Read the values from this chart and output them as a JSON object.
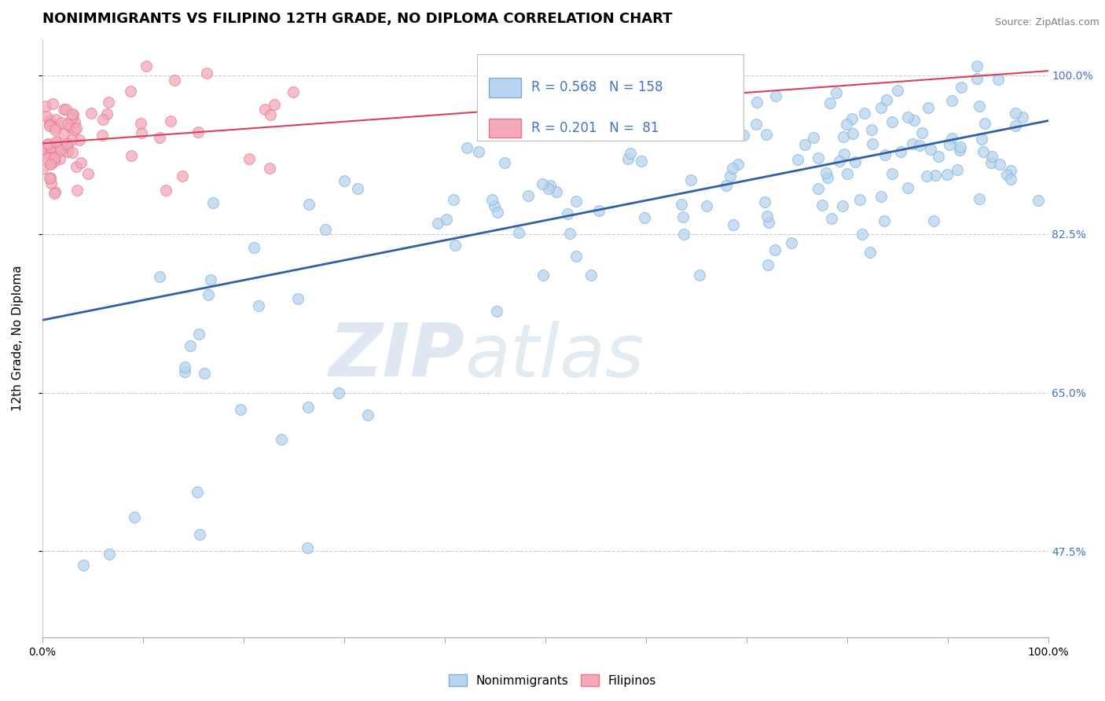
{
  "title": "NONIMMIGRANTS VS FILIPINO 12TH GRADE, NO DIPLOMA CORRELATION CHART",
  "source": "Source: ZipAtlas.com",
  "ylabel": "12th Grade, No Diploma",
  "x_min": 0.0,
  "x_max": 1.0,
  "y_min": 0.38,
  "y_max": 1.04,
  "y_ticks": [
    0.475,
    0.65,
    0.825,
    1.0
  ],
  "y_tick_labels": [
    "47.5%",
    "65.0%",
    "82.5%",
    "100.0%"
  ],
  "x_tick_labels_left": "0.0%",
  "x_tick_labels_right": "100.0%",
  "blue_color": "#b8d4ee",
  "blue_edge": "#7aafd4",
  "pink_color": "#f4a8b8",
  "pink_edge": "#e07890",
  "blue_line_color": "#3060a8",
  "pink_line_color": "#d84060",
  "R_blue": 0.568,
  "N_blue": 158,
  "R_pink": 0.201,
  "N_pink": 81,
  "legend_label_blue": "Nonimmigrants",
  "legend_label_pink": "Filipinos",
  "watermark_zip": "ZIP",
  "watermark_atlas": "atlas",
  "title_fontsize": 13,
  "axis_label_fontsize": 11,
  "tick_fontsize": 10,
  "legend_fontsize": 12,
  "blue_seed": 12,
  "pink_seed": 5,
  "grid_color": "#cccccc",
  "background_color": "#ffffff",
  "right_tick_color": "#4472c4",
  "blue_slope": 0.22,
  "blue_intercept": 0.73,
  "pink_slope": 0.08,
  "pink_intercept": 0.925
}
